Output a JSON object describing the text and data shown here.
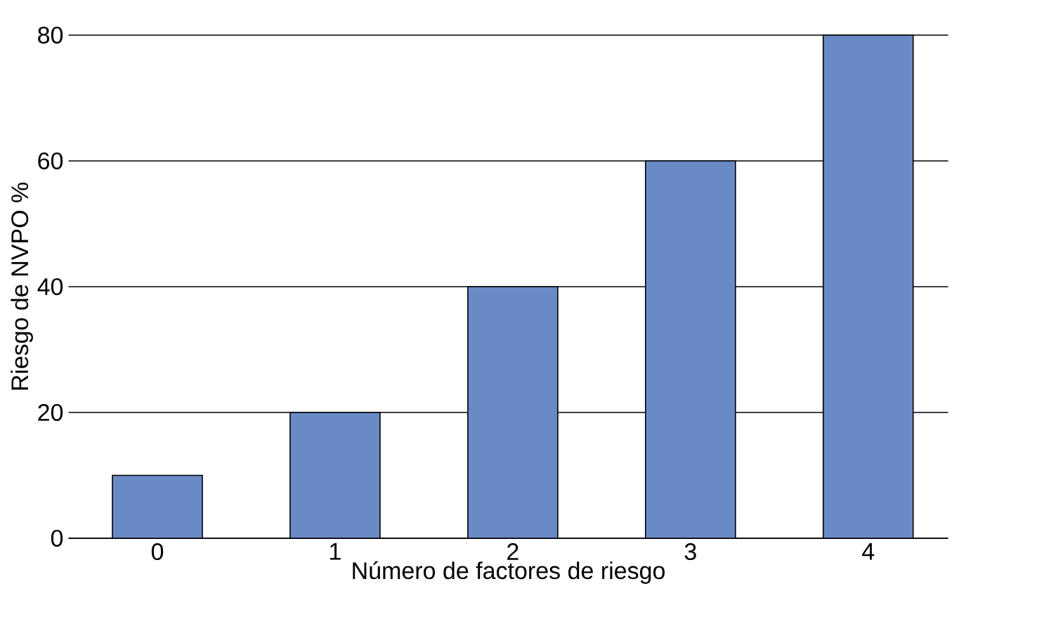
{
  "chart_data": {
    "type": "bar",
    "xlabel": "Número de factores de riesgo",
    "ylabel": "Riesgo de NVPO %",
    "categories": [
      "0",
      "1",
      "2",
      "3",
      "4"
    ],
    "values": [
      10,
      20,
      40,
      60,
      80
    ],
    "color": "#6a8ac6",
    "ylim": [
      0,
      80
    ],
    "yticks": [
      0,
      20,
      40,
      60,
      80
    ],
    "grid": "y"
  }
}
